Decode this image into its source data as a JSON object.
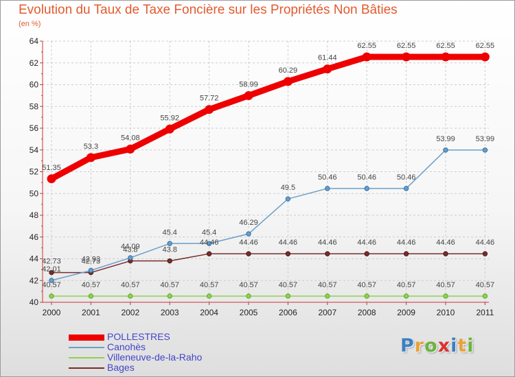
{
  "title": "Evolution du Taux de Taxe Foncière sur les Propriétés Non Bâties",
  "subtitle": "(en %)",
  "logo_text": "Proxiti",
  "chart_data": {
    "type": "line",
    "x": [
      "2000",
      "2001",
      "2002",
      "2003",
      "2004",
      "2005",
      "2006",
      "2007",
      "2008",
      "2009",
      "2010",
      "2011"
    ],
    "ylim": [
      40,
      64
    ],
    "yticks": [
      40,
      42,
      44,
      46,
      48,
      50,
      52,
      54,
      56,
      58,
      60,
      62,
      64
    ],
    "grid": true,
    "legend_position": "bottom-left",
    "series": [
      {
        "name": "POLLESTRES",
        "color": "#ee0000",
        "values": [
          51.35,
          53.3,
          54.08,
          55.92,
          57.72,
          58.99,
          60.29,
          61.44,
          62.55,
          62.55,
          62.55,
          62.55
        ],
        "labels": [
          "51.35",
          "53.3",
          "54.08",
          "55.92",
          "57.72",
          "58.99",
          "60.29",
          "61.44",
          "62.55",
          "62.55",
          "62.55",
          "62.55"
        ]
      },
      {
        "name": "Canohès",
        "color": "#6a9ec9",
        "values": [
          42.01,
          42.93,
          44.09,
          45.4,
          45.4,
          46.29,
          49.5,
          50.46,
          50.46,
          50.46,
          53.99,
          53.99
        ],
        "labels": [
          "42.01",
          "42.93",
          "44.09",
          "45.4",
          "45.4",
          "46.29",
          "49.5",
          "50.46",
          "50.46",
          "50.46",
          "53.99",
          "53.99"
        ]
      },
      {
        "name": "Villeneuve-de-la-Raho",
        "color": "#8fd14f",
        "values": [
          40.57,
          40.57,
          40.57,
          40.57,
          40.57,
          40.57,
          40.57,
          40.57,
          40.57,
          40.57,
          40.57,
          40.57
        ],
        "labels": [
          "40.57",
          "40.57",
          "40.57",
          "40.57",
          "40.57",
          "40.57",
          "40.57",
          "40.57",
          "40.57",
          "40.57",
          "40.57",
          "40.57"
        ]
      },
      {
        "name": "Bages",
        "color": "#7a2c2c",
        "values": [
          42.73,
          42.73,
          43.8,
          43.8,
          44.46,
          44.46,
          44.46,
          44.46,
          44.46,
          44.46,
          44.46,
          44.46
        ],
        "labels": [
          "42.73",
          "42.73",
          "43.8",
          "43.8",
          "44.46",
          "44.46",
          "44.46",
          "44.46",
          "44.46",
          "44.46",
          "44.46",
          "44.46"
        ]
      }
    ]
  }
}
